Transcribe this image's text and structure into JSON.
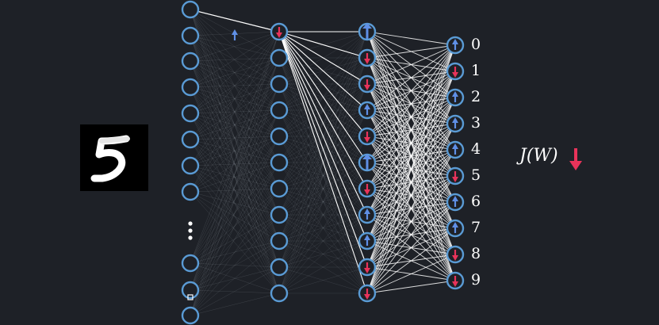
{
  "input_image": {
    "digit": "5"
  },
  "output_labels": [
    "0",
    "1",
    "2",
    "3",
    "4",
    "5",
    "6",
    "7",
    "8",
    "9"
  ],
  "cost_label": "J(W)",
  "colors": {
    "background": "#1e2127",
    "neuron": "#5a9bd5",
    "up_arrow": "#5f8fe6",
    "down_arrow": "#e8335a",
    "edge_strong": "#ffffff",
    "edge_faint": "#9aa0a8"
  },
  "layers": [
    {
      "name": "input",
      "arrows": [
        "none",
        "none",
        "none",
        "none",
        "none",
        "none",
        "none",
        "none",
        "ellipsis",
        "none",
        "none",
        "none"
      ]
    },
    {
      "name": "hidden-1",
      "arrows": [
        "down",
        "none",
        "none",
        "none",
        "none",
        "none",
        "none",
        "none",
        "none",
        "none",
        "none"
      ]
    },
    {
      "name": "hidden-2",
      "arrows": [
        "up",
        "down",
        "down",
        "up",
        "down",
        "up",
        "down",
        "up",
        "up",
        "down",
        "down"
      ]
    },
    {
      "name": "output",
      "arrows": [
        "up",
        "down",
        "up",
        "up",
        "up",
        "down",
        "up",
        "up",
        "down",
        "down"
      ]
    }
  ],
  "cost_direction": "down"
}
